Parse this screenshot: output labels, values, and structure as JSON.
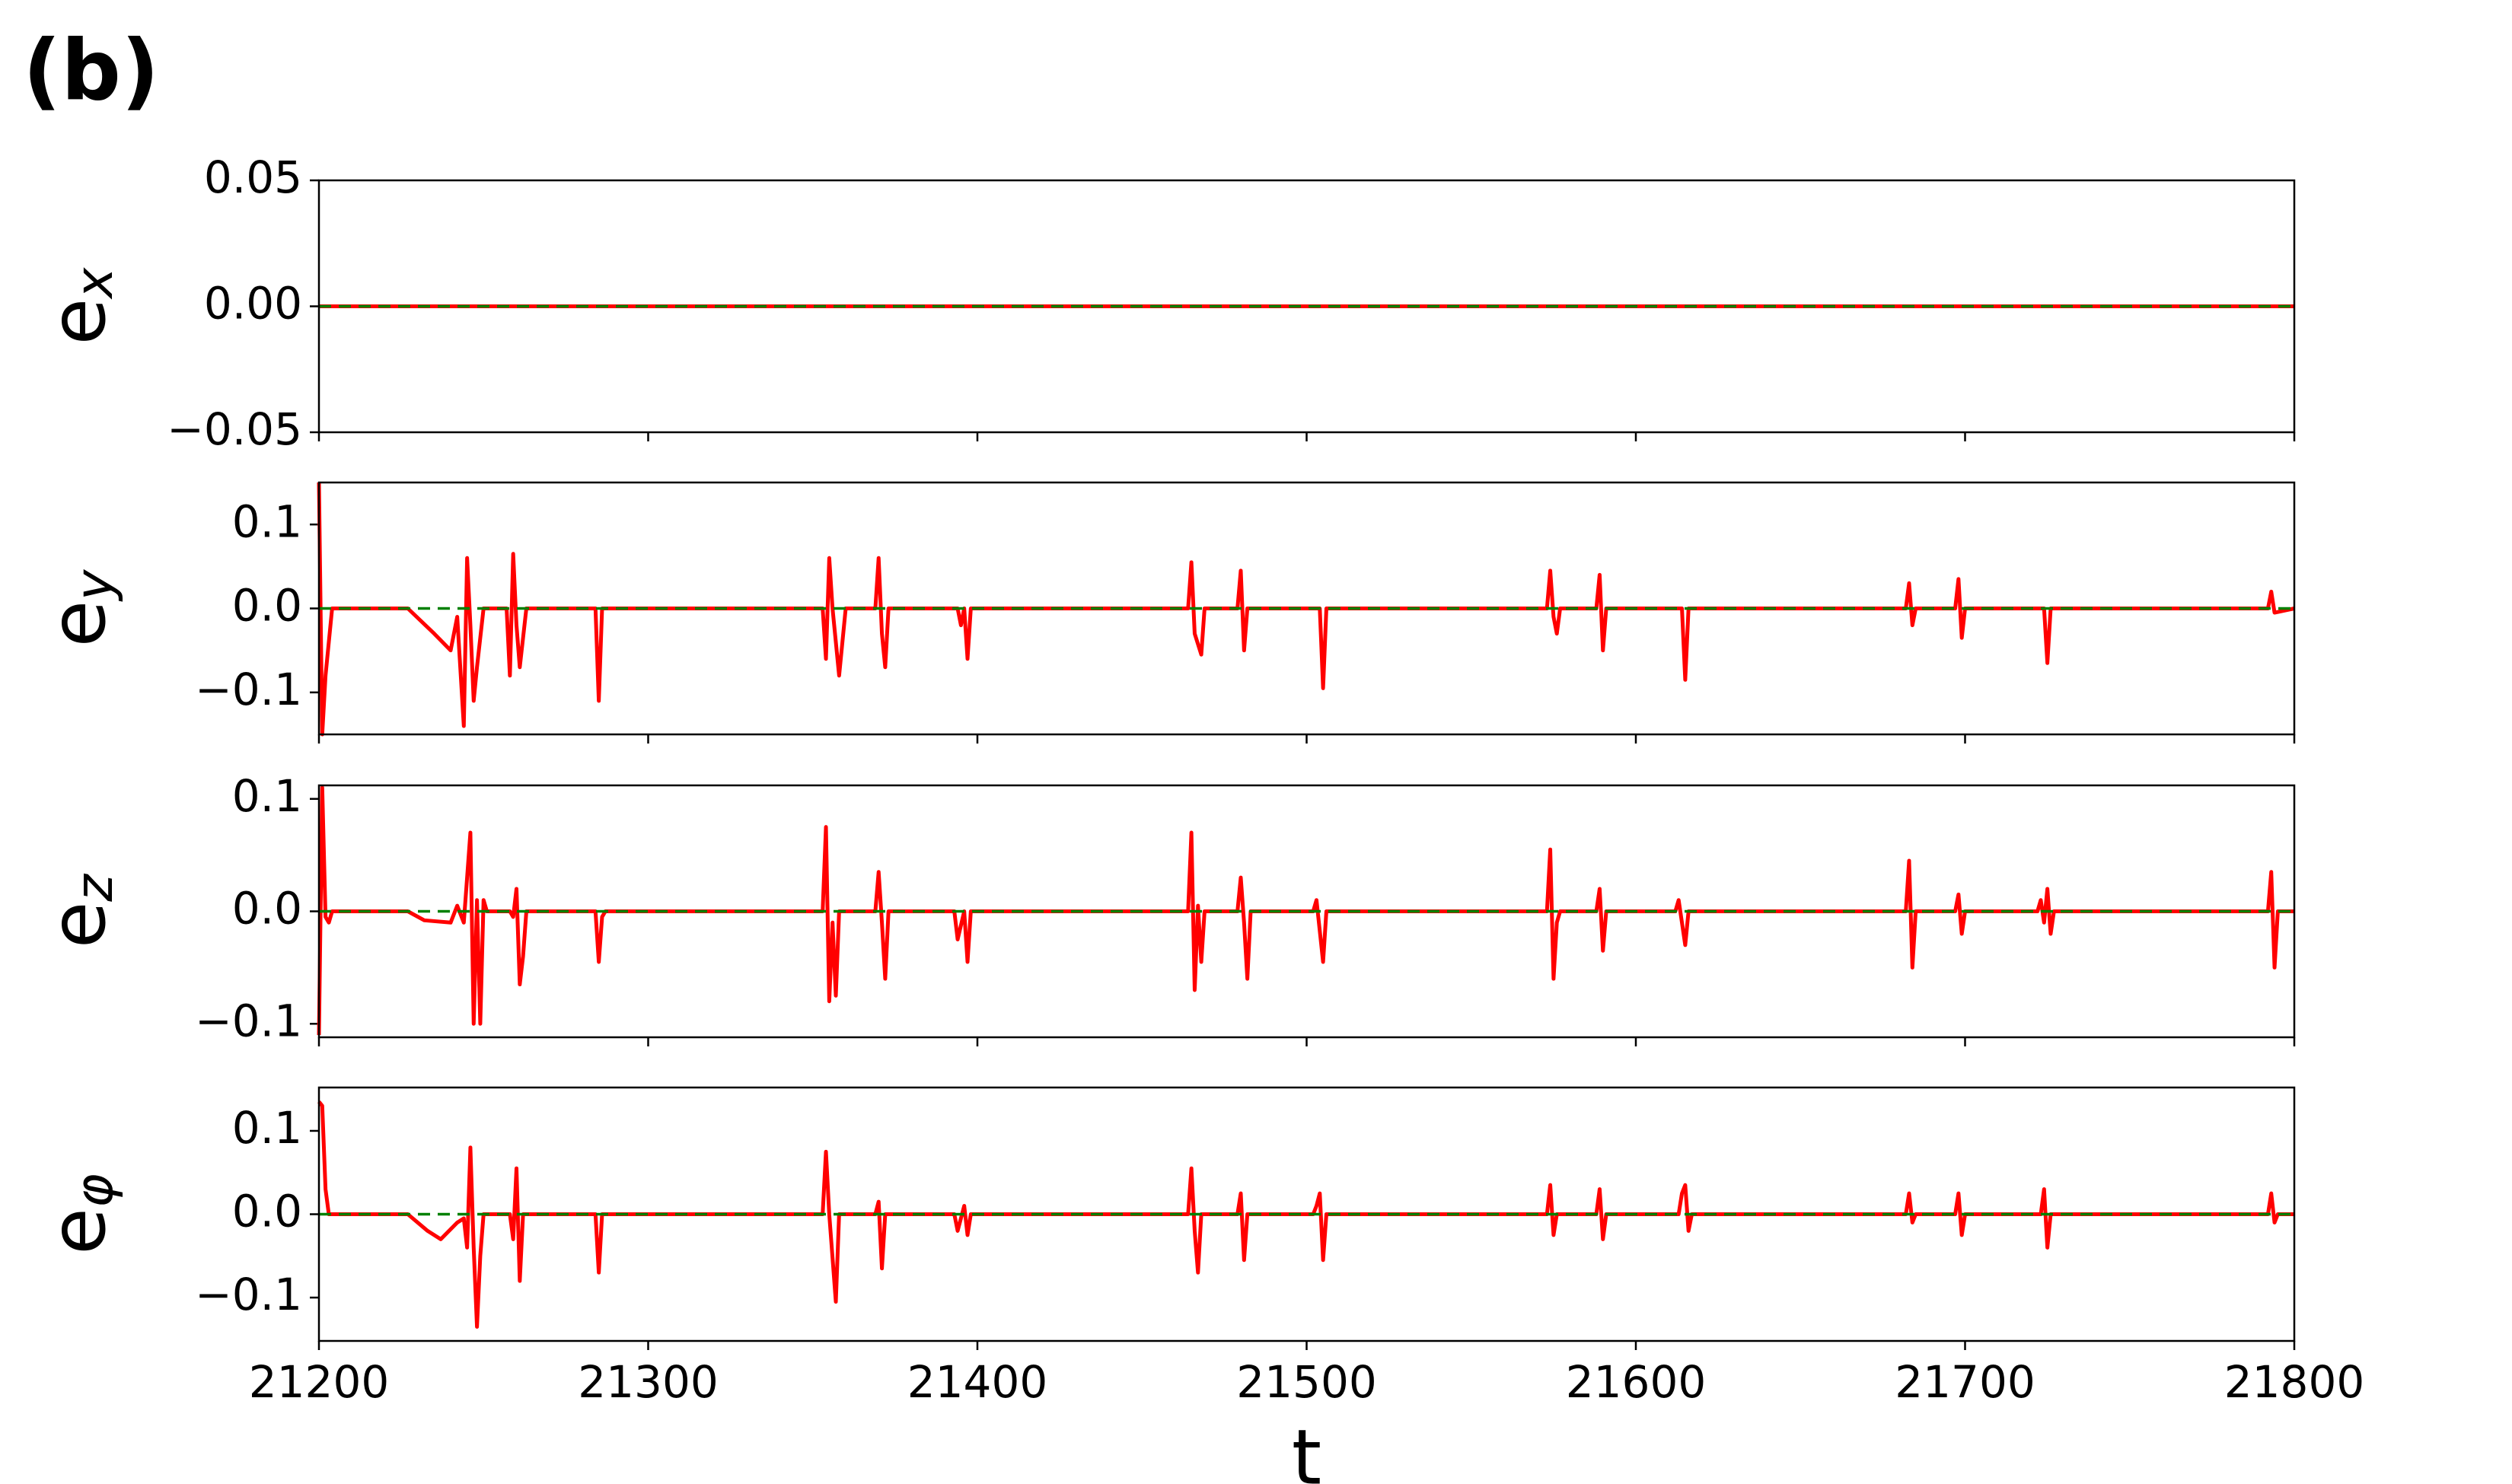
{
  "panel_label": "(b)",
  "chart_data": [
    {
      "type": "line",
      "ylabel": "e",
      "ylabel_sub": "x",
      "x": [
        21200,
        21800
      ],
      "series": [
        {
          "color": "#ff0000",
          "values": [
            0,
            0
          ]
        }
      ],
      "hline": 0,
      "hline_color": "#008000",
      "xlim": [
        21200,
        21800
      ],
      "xticks": [
        21200,
        21300,
        21400,
        21500,
        21600,
        21700,
        21800
      ],
      "xticklabels": false,
      "ylim": [
        -0.05,
        0.05
      ],
      "yticks": [
        {
          "value": -0.05,
          "label": "−0.05"
        },
        {
          "value": 0,
          "label": "0.00"
        },
        0.05
      ]
    },
    {
      "type": "line",
      "ylabel": "e",
      "ylabel_sub": "y",
      "x": [
        21200,
        21201,
        21202,
        21204,
        21227,
        21235,
        21240,
        21242,
        21244,
        21245,
        21246,
        21247,
        21248,
        21250,
        21257,
        21258,
        21259,
        21260,
        21261,
        21263,
        21284,
        21285,
        21286,
        21353,
        21354,
        21355,
        21356,
        21358,
        21360,
        21369,
        21370,
        21371,
        21372,
        21373,
        21394,
        21395,
        21396,
        21397,
        21398,
        21464,
        21465,
        21466,
        21468,
        21469,
        21479,
        21480,
        21481,
        21482,
        21504,
        21505,
        21506,
        21573,
        21574,
        21575,
        21576,
        21577,
        21588,
        21589,
        21590,
        21591,
        21614,
        21615,
        21616,
        21682,
        21683,
        21684,
        21685,
        21697,
        21698,
        21699,
        21700,
        21724,
        21725,
        21726,
        21792,
        21793,
        21794,
        21800
      ],
      "series": [
        {
          "color": "#ff0000",
          "values": [
            0.15,
            -0.15,
            -0.08,
            0,
            0,
            -0.03,
            -0.05,
            -0.01,
            -0.14,
            0.06,
            -0.02,
            -0.11,
            -0.07,
            0,
            0,
            -0.08,
            0.065,
            -0.02,
            -0.07,
            0,
            0,
            -0.11,
            0,
            0,
            -0.06,
            0.06,
            0,
            -0.08,
            0,
            0,
            0.06,
            -0.03,
            -0.07,
            0,
            0,
            -0.02,
            0,
            -0.06,
            0,
            0,
            0.055,
            -0.03,
            -0.055,
            0,
            0,
            0.045,
            -0.05,
            0,
            0,
            -0.095,
            0,
            0,
            0.045,
            -0.01,
            -0.03,
            0,
            0,
            0.04,
            -0.05,
            0,
            0,
            -0.085,
            0,
            0,
            0.03,
            -0.02,
            0,
            0,
            0.035,
            -0.035,
            0,
            0,
            -0.065,
            0,
            0,
            0.02,
            -0.005,
            0
          ]
        }
      ],
      "hline": 0,
      "hline_color": "#008000",
      "xlim": [
        21200,
        21800
      ],
      "xticks": [
        21200,
        21300,
        21400,
        21500,
        21600,
        21700,
        21800
      ],
      "xticklabels": false,
      "ylim": [
        -0.15,
        0.15
      ],
      "yticks": [
        {
          "value": -0.1,
          "label": "−0.1"
        },
        {
          "value": 0,
          "label": "0.0"
        },
        0.1
      ]
    },
    {
      "type": "line",
      "ylabel": "e",
      "ylabel_sub": "z",
      "x": [
        21200,
        21201,
        21202,
        21203,
        21204,
        21227,
        21232,
        21240,
        21242,
        21244,
        21246,
        21247,
        21248,
        21249,
        21250,
        21251,
        21258,
        21259,
        21260,
        21261,
        21262,
        21263,
        21284,
        21285,
        21286,
        21287,
        21353,
        21354,
        21355,
        21356,
        21357,
        21358,
        21369,
        21370,
        21371,
        21372,
        21373,
        21393,
        21394,
        21396,
        21397,
        21398,
        21464,
        21465,
        21466,
        21467,
        21468,
        21469,
        21479,
        21480,
        21481,
        21482,
        21483,
        21502,
        21503,
        21505,
        21506,
        21573,
        21574,
        21575,
        21576,
        21577,
        21588,
        21589,
        21590,
        21591,
        21612,
        21613,
        21615,
        21616,
        21682,
        21683,
        21684,
        21685,
        21697,
        21698,
        21699,
        21700,
        21722,
        21723,
        21724,
        21725,
        21726,
        21727,
        21792,
        21793,
        21794,
        21795,
        21800
      ],
      "series": [
        {
          "color": "#ff0000",
          "values": [
            -0.11,
            0.11,
            -0.005,
            -0.01,
            0,
            0,
            -0.008,
            -0.01,
            0.005,
            -0.01,
            0.07,
            -0.1,
            0.01,
            -0.1,
            0.01,
            0,
            0,
            -0.005,
            0.02,
            -0.065,
            -0.04,
            0,
            0,
            -0.045,
            -0.005,
            0,
            0,
            0.075,
            -0.08,
            -0.01,
            -0.075,
            0,
            0,
            0.035,
            -0.01,
            -0.06,
            0,
            0,
            -0.025,
            0,
            -0.045,
            0,
            0,
            0.07,
            -0.07,
            0.005,
            -0.045,
            0,
            0,
            0.03,
            -0.01,
            -0.06,
            0,
            0,
            0.01,
            -0.045,
            0,
            0,
            0.055,
            -0.06,
            -0.01,
            0,
            0,
            0.02,
            -0.035,
            0,
            0,
            0.01,
            -0.03,
            0,
            0,
            0.045,
            -0.05,
            0,
            0,
            0.015,
            -0.02,
            0,
            0,
            0.01,
            -0.01,
            0.02,
            -0.02,
            0,
            0,
            0.035,
            -0.05,
            0,
            0
          ]
        }
      ],
      "hline": 0,
      "hline_color": "#008000",
      "xlim": [
        21200,
        21800
      ],
      "xticks": [
        21200,
        21300,
        21400,
        21500,
        21600,
        21700,
        21800
      ],
      "xticklabels": false,
      "ylim": [
        -0.112,
        0.112
      ],
      "yticks": [
        {
          "value": -0.1,
          "label": "−0.1"
        },
        {
          "value": 0,
          "label": "0.0"
        },
        0.1
      ]
    },
    {
      "type": "line",
      "ylabel": "e",
      "ylabel_sub": "φ",
      "xlabel": "t",
      "x": [
        21200,
        21201,
        21202,
        21203,
        21227,
        21233,
        21237,
        21242,
        21244,
        21245,
        21246,
        21247,
        21248,
        21249,
        21250,
        21258,
        21259,
        21260,
        21261,
        21262,
        21284,
        21285,
        21286,
        21353,
        21354,
        21355,
        21357,
        21358,
        21369,
        21370,
        21371,
        21372,
        21393,
        21394,
        21396,
        21397,
        21398,
        21464,
        21465,
        21466,
        21467,
        21468,
        21479,
        21480,
        21481,
        21482,
        21502,
        21503,
        21504,
        21505,
        21506,
        21573,
        21574,
        21575,
        21576,
        21588,
        21589,
        21590,
        21591,
        21613,
        21614,
        21615,
        21616,
        21617,
        21682,
        21683,
        21684,
        21685,
        21697,
        21698,
        21699,
        21700,
        21723,
        21724,
        21725,
        21726,
        21792,
        21793,
        21794,
        21795,
        21800
      ],
      "series": [
        {
          "color": "#ff0000",
          "values": [
            0.135,
            0.13,
            0.03,
            0,
            0,
            -0.02,
            -0.03,
            -0.01,
            -0.005,
            -0.04,
            0.08,
            -0.04,
            -0.135,
            -0.05,
            0,
            0,
            -0.03,
            0.055,
            -0.08,
            0,
            0,
            -0.07,
            0,
            0,
            0.075,
            0,
            -0.105,
            0,
            0,
            0.015,
            -0.065,
            0,
            0,
            -0.02,
            0.01,
            -0.025,
            0,
            0,
            0.055,
            -0.02,
            -0.07,
            0,
            0,
            0.025,
            -0.055,
            0,
            0,
            0.01,
            0.025,
            -0.055,
            0,
            0,
            0.035,
            -0.025,
            0,
            0,
            0.03,
            -0.03,
            0,
            0,
            0.025,
            0.035,
            -0.02,
            0,
            0,
            0.025,
            -0.01,
            0,
            0,
            0.025,
            -0.025,
            0,
            0,
            0.03,
            -0.04,
            0,
            0,
            0.025,
            -0.01,
            0,
            0
          ]
        }
      ],
      "hline": 0,
      "hline_color": "#008000",
      "xlim": [
        21200,
        21800
      ],
      "xticks": [
        21200,
        21300,
        21400,
        21500,
        21600,
        21700,
        21800
      ],
      "xticklabels": true,
      "ylim": [
        -0.152,
        0.152
      ],
      "yticks": [
        {
          "value": -0.1,
          "label": "−0.1"
        },
        {
          "value": 0,
          "label": "0.0"
        },
        0.1
      ]
    }
  ]
}
